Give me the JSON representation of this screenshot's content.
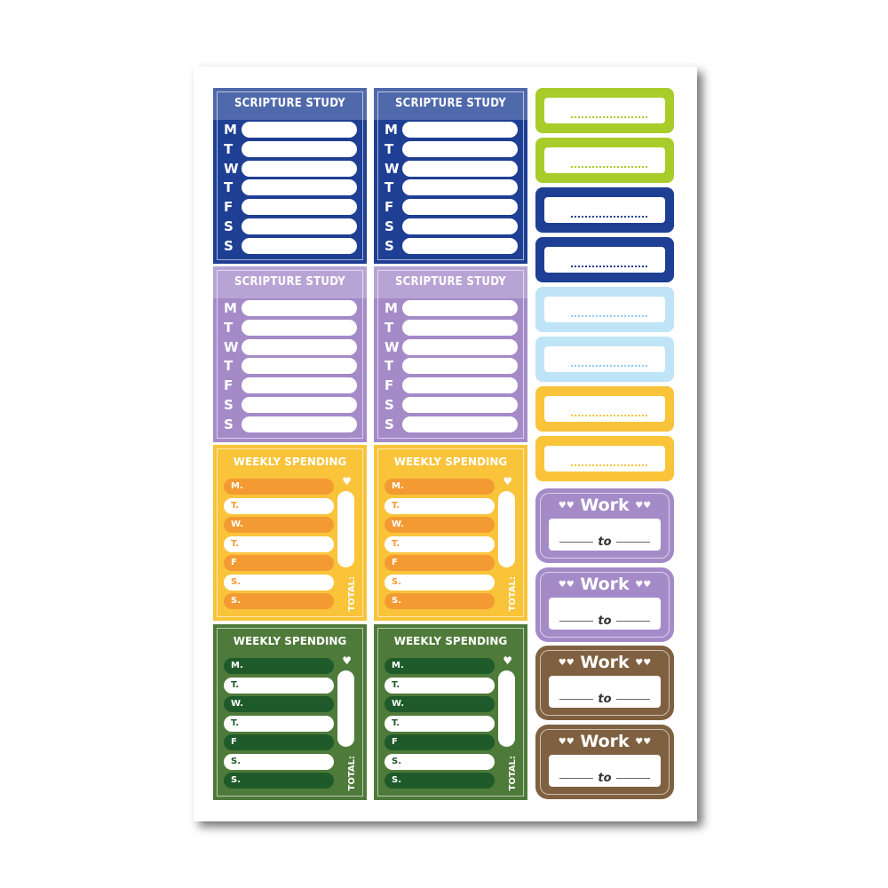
{
  "scripture": {
    "title": "SCRIPTURE STUDY",
    "days": [
      "M",
      "T",
      "W",
      "T",
      "F",
      "S",
      "S"
    ],
    "stickers": [
      {
        "color": "#1f3f94"
      },
      {
        "color": "#1f3f94"
      },
      {
        "color": "#a48bc8"
      },
      {
        "color": "#a48bc8"
      }
    ]
  },
  "spending": {
    "title": "WEEKLY SPENDING",
    "days": [
      "M.",
      "T.",
      "W.",
      "T.",
      "F",
      "S.",
      "S."
    ],
    "total": "TOTAL:",
    "heart": "♥",
    "stickers": [
      {
        "color": "#f9c33a",
        "row": "#f39a33",
        "text": "#f39a33"
      },
      {
        "color": "#f9c33a",
        "row": "#f39a33",
        "text": "#f39a33"
      },
      {
        "color": "#4e7a3a",
        "row": "#1f5a2a",
        "text": "#1f5a2a"
      },
      {
        "color": "#4e7a3a",
        "row": "#1f5a2a",
        "text": "#1f5a2a"
      }
    ]
  },
  "labels": [
    {
      "color": "#a8cc2a",
      "dots": "#a8cc2a"
    },
    {
      "color": "#a8cc2a",
      "dots": "#a8cc2a"
    },
    {
      "color": "#1f3f94",
      "dots": "#1f3f94"
    },
    {
      "color": "#1f3f94",
      "dots": "#1f3f94"
    },
    {
      "color": "#bfe4f7",
      "dots": "#8fcbef"
    },
    {
      "color": "#bfe4f7",
      "dots": "#8fcbef"
    },
    {
      "color": "#f9c33a",
      "dots": "#f9c33a"
    },
    {
      "color": "#f9c33a",
      "dots": "#f9c33a"
    }
  ],
  "work": {
    "title": "Work",
    "to": "to",
    "hearts": "♥♥",
    "stickers": [
      {
        "color": "#a48bc8"
      },
      {
        "color": "#a48bc8"
      },
      {
        "color": "#7f6040"
      },
      {
        "color": "#7f6040"
      }
    ]
  }
}
